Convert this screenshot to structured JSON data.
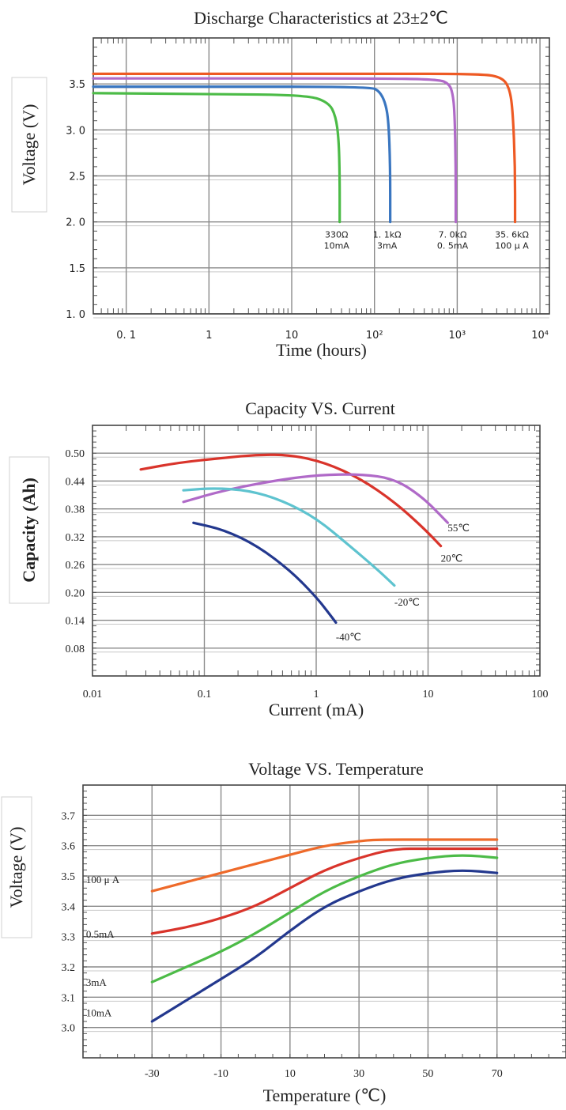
{
  "chart_data": [
    {
      "type": "line",
      "title": "Discharge Characteristics at 23±2℃",
      "xlabel": "Time (hours)",
      "ylabel": "Voltage (V)",
      "xscale": "log",
      "xlim": [
        0.04,
        13000
      ],
      "ylim": [
        1.0,
        4.0
      ],
      "grid": true,
      "x_ticks": [
        {
          "value": 0.1,
          "label": "0. 1"
        },
        {
          "value": 1,
          "label": "1"
        },
        {
          "value": 10,
          "label": "10"
        },
        {
          "value": 100,
          "label": "10²"
        },
        {
          "value": 1000,
          "label": "10³"
        },
        {
          "value": 10000,
          "label": "10⁴"
        }
      ],
      "y_ticks": [
        {
          "value": 1.0,
          "label": "1. 0"
        },
        {
          "value": 1.5,
          "label": "1.5"
        },
        {
          "value": 2.0,
          "label": "2. 0"
        },
        {
          "value": 2.5,
          "label": "2.5"
        },
        {
          "value": 3.0,
          "label": "3. 0"
        },
        {
          "value": 3.5,
          "label": "3.5"
        }
      ],
      "series": [
        {
          "color": "#ee5a24",
          "label_lines": [
            "35. 6kΩ",
            "100 μ A"
          ],
          "label_at": [
            5000,
            1.95
          ],
          "x": [
            0.04,
            1,
            100,
            2000,
            3500,
            4300,
            4700,
            5000,
            5000
          ],
          "y": [
            3.61,
            3.61,
            3.61,
            3.61,
            3.57,
            3.45,
            3.2,
            2.6,
            2.0
          ]
        },
        {
          "color": "#b06ac8",
          "label_lines": [
            "7. 0kΩ",
            "0. 5mA"
          ],
          "label_at": [
            960,
            1.95
          ],
          "x": [
            0.04,
            1,
            100,
            600,
            800,
            880,
            930,
            960,
            960
          ],
          "y": [
            3.56,
            3.56,
            3.56,
            3.55,
            3.5,
            3.4,
            3.2,
            2.6,
            2.0
          ]
        },
        {
          "color": "#3a76c0",
          "label_lines": [
            "1. 1kΩ",
            "3mA"
          ],
          "label_at": [
            155,
            1.95
          ],
          "x": [
            0.04,
            1,
            90,
            115,
            135,
            148,
            155,
            155
          ],
          "y": [
            3.47,
            3.47,
            3.47,
            3.42,
            3.3,
            3.1,
            2.6,
            2.0
          ]
        },
        {
          "color": "#4cbb47",
          "label_lines": [
            "330Ω",
            "10mA"
          ],
          "label_at": [
            38,
            1.95
          ],
          "x": [
            0.04,
            1,
            15,
            28,
            34,
            37,
            38,
            38
          ],
          "y": [
            3.4,
            3.39,
            3.38,
            3.3,
            3.15,
            2.9,
            2.5,
            2.0
          ]
        }
      ]
    },
    {
      "type": "line",
      "title": "Capacity VS. Current",
      "xlabel": "Current (mA)",
      "ylabel": "Capacity (Ah)",
      "xscale": "log",
      "xlim": [
        0.01,
        100
      ],
      "ylim": [
        0.02,
        0.56
      ],
      "grid": true,
      "x_ticks": [
        {
          "value": 0.01,
          "label": "0.01"
        },
        {
          "value": 0.1,
          "label": "0.1"
        },
        {
          "value": 1,
          "label": "1"
        },
        {
          "value": 10,
          "label": "10"
        },
        {
          "value": 100,
          "label": "100"
        }
      ],
      "y_ticks": [
        {
          "value": 0.08,
          "label": "0.08"
        },
        {
          "value": 0.14,
          "label": "0.14"
        },
        {
          "value": 0.2,
          "label": "0.20"
        },
        {
          "value": 0.26,
          "label": "0.26"
        },
        {
          "value": 0.32,
          "label": "0.32"
        },
        {
          "value": 0.38,
          "label": "0.38"
        },
        {
          "value": 0.44,
          "label": "0.44"
        },
        {
          "value": 0.5,
          "label": "0.50"
        }
      ],
      "series": [
        {
          "label": "20℃",
          "color": "#d9342b",
          "label_at": [
            13,
            0.275
          ],
          "x": [
            0.027,
            0.06,
            0.15,
            0.3,
            0.6,
            1.2,
            2.5,
            5,
            9,
            13
          ],
          "y": [
            0.465,
            0.48,
            0.49,
            0.497,
            0.496,
            0.48,
            0.445,
            0.395,
            0.34,
            0.3
          ]
        },
        {
          "label": "55℃",
          "color": "#b06ac8",
          "label_at": [
            15,
            0.34
          ],
          "x": [
            0.065,
            0.15,
            0.4,
            1,
            2.5,
            5,
            9,
            15
          ],
          "y": [
            0.395,
            0.42,
            0.44,
            0.453,
            0.455,
            0.445,
            0.405,
            0.35
          ]
        },
        {
          "label": "-20℃",
          "color": "#5ec3cf",
          "label_at": [
            5,
            0.18
          ],
          "x": [
            0.065,
            0.12,
            0.25,
            0.5,
            1,
            2,
            3.5,
            5
          ],
          "y": [
            0.42,
            0.425,
            0.42,
            0.398,
            0.36,
            0.3,
            0.25,
            0.215
          ]
        },
        {
          "label": "-40℃",
          "color": "#23388e",
          "label_at": [
            1.5,
            0.105
          ],
          "x": [
            0.08,
            0.15,
            0.3,
            0.6,
            1,
            1.3,
            1.5
          ],
          "y": [
            0.35,
            0.335,
            0.3,
            0.245,
            0.19,
            0.155,
            0.135
          ]
        }
      ]
    },
    {
      "type": "line",
      "title": "Voltage VS. Temperature",
      "xlabel": "Temperature (℃)",
      "ylabel": "Voltage (V)",
      "xlim": [
        -50,
        90
      ],
      "ylim": [
        2.9,
        3.8
      ],
      "grid": true,
      "x_ticks": [
        {
          "value": -30,
          "label": "-30"
        },
        {
          "value": -10,
          "label": "-10"
        },
        {
          "value": 10,
          "label": "10"
        },
        {
          "value": 30,
          "label": "30"
        },
        {
          "value": 50,
          "label": "50"
        },
        {
          "value": 70,
          "label": "70"
        }
      ],
      "y_ticks": [
        {
          "value": 3.0,
          "label": "3.0"
        },
        {
          "value": 3.1,
          "label": "3.1"
        },
        {
          "value": 3.2,
          "label": "3.2"
        },
        {
          "value": 3.3,
          "label": "3.3"
        },
        {
          "value": 3.4,
          "label": "3.4"
        },
        {
          "value": 3.5,
          "label": "3.5"
        },
        {
          "value": 3.6,
          "label": "3.6"
        },
        {
          "value": 3.7,
          "label": "3.7"
        }
      ],
      "series": [
        {
          "label": "100 μ A",
          "color": "#ee6a2a",
          "label_at": [
            -45,
            3.49
          ],
          "x": [
            -30,
            -20,
            -10,
            0,
            10,
            20,
            30,
            35,
            50,
            70
          ],
          "y": [
            3.45,
            3.48,
            3.51,
            3.54,
            3.57,
            3.6,
            3.615,
            3.62,
            3.62,
            3.62
          ]
        },
        {
          "label": "0.5mA",
          "color": "#d9342b",
          "label_at": [
            -45,
            3.31
          ],
          "x": [
            -30,
            -20,
            -10,
            0,
            10,
            20,
            30,
            40,
            50,
            70
          ],
          "y": [
            3.31,
            3.33,
            3.36,
            3.4,
            3.46,
            3.52,
            3.56,
            3.59,
            3.59,
            3.59
          ]
        },
        {
          "label": "3mA",
          "color": "#4cbb47",
          "label_at": [
            -45,
            3.15
          ],
          "x": [
            -30,
            -20,
            -10,
            0,
            10,
            20,
            30,
            40,
            50,
            60,
            70
          ],
          "y": [
            3.15,
            3.2,
            3.25,
            3.31,
            3.38,
            3.45,
            3.5,
            3.54,
            3.56,
            3.57,
            3.56
          ]
        },
        {
          "label": "10mA",
          "color": "#23388e",
          "label_at": [
            -45,
            3.05
          ],
          "x": [
            -30,
            -20,
            -10,
            0,
            10,
            20,
            30,
            40,
            50,
            60,
            70
          ],
          "y": [
            3.02,
            3.09,
            3.16,
            3.23,
            3.32,
            3.4,
            3.45,
            3.49,
            3.51,
            3.52,
            3.51
          ]
        }
      ]
    }
  ]
}
